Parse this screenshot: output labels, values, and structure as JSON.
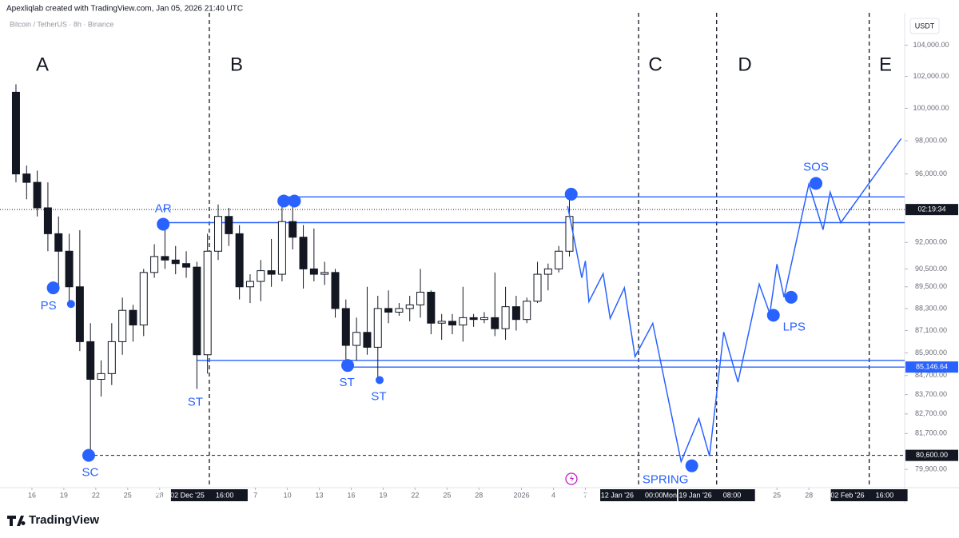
{
  "chart_data": {
    "type": "candlestick",
    "credit": "Apexliqlab created with TradingView.com, Jan 05, 2026 21:40 UTC",
    "subtitle": "Bitcoin / TetherUS · 8h · Binance",
    "currency": "USDT",
    "brand": "TradingView",
    "log_scale": true,
    "xlim": [
      "2025-11-13T00:00",
      "2026-02-06T00:00"
    ],
    "ylim": [
      79000,
      105900
    ],
    "yticks": [
      {
        "value": 104000,
        "label": "104,000.00"
      },
      {
        "value": 102000,
        "label": "102,000.00"
      },
      {
        "value": 100000,
        "label": "100,000.00"
      },
      {
        "value": 98000,
        "label": "98,000.00"
      },
      {
        "value": 96000,
        "label": "96,000.00"
      },
      {
        "value": 92000,
        "label": "92,000.00"
      },
      {
        "value": 90500,
        "label": "90,500.00"
      },
      {
        "value": 89500,
        "label": "89,500.00"
      },
      {
        "value": 88300,
        "label": "88,300.00"
      },
      {
        "value": 87100,
        "label": "87,100.00"
      },
      {
        "value": 85900,
        "label": "85,900.00"
      },
      {
        "value": 84700,
        "label": "84,700.00"
      },
      {
        "value": 83700,
        "label": "83,700.00"
      },
      {
        "value": 82700,
        "label": "82,700.00"
      },
      {
        "value": 81700,
        "label": "81,700.00"
      },
      {
        "value": 79900,
        "label": "79,900.00"
      }
    ],
    "xticks": [
      {
        "value": "2025-11-16T00:00",
        "label": "16"
      },
      {
        "value": "2025-11-19T00:00",
        "label": "19"
      },
      {
        "value": "2025-11-22T00:00",
        "label": "22"
      },
      {
        "value": "2025-11-25T00:00",
        "label": "25"
      },
      {
        "value": "2025-11-28T00:00",
        "label": "28"
      },
      {
        "value": "2025-12-02T16:00",
        "label": "Tue 02 Dec '25",
        "time": "16:00",
        "highlight": true,
        "divider": true
      },
      {
        "value": "2025-12-07T00:00",
        "label": "7"
      },
      {
        "value": "2025-12-10T00:00",
        "label": "10"
      },
      {
        "value": "2025-12-13T00:00",
        "label": "13"
      },
      {
        "value": "2025-12-16T00:00",
        "label": "16"
      },
      {
        "value": "2025-12-19T00:00",
        "label": "19"
      },
      {
        "value": "2025-12-22T00:00",
        "label": "22"
      },
      {
        "value": "2025-12-25T00:00",
        "label": "25"
      },
      {
        "value": "2025-12-28T00:00",
        "label": "28"
      },
      {
        "value": "2026-01-01T00:00",
        "label": "2026"
      },
      {
        "value": "2026-01-04T00:00",
        "label": "4"
      },
      {
        "value": "2026-01-07T00:00",
        "label": "7"
      },
      {
        "value": "2026-01-12T00:00",
        "label": "Mon 12 Jan '26",
        "time": "00:00",
        "highlight": true,
        "divider": true
      },
      {
        "value": "2026-01-19T08:00",
        "label": "Mon 19 Jan '26",
        "time": "08:00",
        "highlight": true,
        "divider": true
      },
      {
        "value": "2026-01-25T00:00",
        "label": "25"
      },
      {
        "value": "2026-01-28T00:00",
        "label": "28"
      },
      {
        "value": "2026-02-02T16:00",
        "label": "Mon 02 Feb '26",
        "time": "16:00",
        "highlight": true,
        "divider": true
      }
    ],
    "phases": [
      "A",
      "B",
      "C",
      "D",
      "E"
    ],
    "candles": {
      "up_color": "#ffffff",
      "down_color": "#131722",
      "x": [
        "2025-11-14",
        "2025-11-15",
        "2025-11-16",
        "2025-11-17",
        "2025-11-18",
        "2025-11-19",
        "2025-11-20",
        "2025-11-21",
        "2025-11-22",
        "2025-11-23",
        "2025-11-24",
        "2025-11-25",
        "2025-11-26",
        "2025-11-27",
        "2025-11-28",
        "2025-11-29",
        "2025-11-30",
        "2025-12-01",
        "2025-12-02",
        "2025-12-03",
        "2025-12-04",
        "2025-12-05",
        "2025-12-06",
        "2025-12-07",
        "2025-12-08",
        "2025-12-09",
        "2025-12-10",
        "2025-12-11",
        "2025-12-12",
        "2025-12-13",
        "2025-12-14",
        "2025-12-15",
        "2025-12-16",
        "2025-12-17",
        "2025-12-18",
        "2025-12-19",
        "2025-12-20",
        "2025-12-21",
        "2025-12-22",
        "2025-12-23",
        "2025-12-24",
        "2025-12-25",
        "2025-12-26",
        "2025-12-27",
        "2025-12-28",
        "2025-12-29",
        "2025-12-30",
        "2025-12-31",
        "2026-01-01",
        "2026-01-02",
        "2026-01-03",
        "2026-01-04",
        "2026-01-05"
      ],
      "ohlc": [
        [
          101000,
          101500,
          95500,
          96000
        ],
        [
          96000,
          96500,
          94500,
          95500
        ],
        [
          95500,
          96200,
          93500,
          94000
        ],
        [
          94000,
          95500,
          91500,
          92500
        ],
        [
          92500,
          93500,
          89500,
          91500
        ],
        [
          91500,
          92500,
          88500,
          89500
        ],
        [
          89500,
          92700,
          86000,
          86500
        ],
        [
          86500,
          87500,
          80600,
          84500
        ],
        [
          84500,
          85500,
          83600,
          84800
        ],
        [
          84800,
          87500,
          84200,
          86500
        ],
        [
          86500,
          88900,
          85800,
          88200
        ],
        [
          88200,
          88500,
          86500,
          87400
        ],
        [
          87400,
          90500,
          86800,
          90300
        ],
        [
          90300,
          91900,
          90000,
          91200
        ],
        [
          91200,
          93050,
          90500,
          91000
        ],
        [
          91000,
          91800,
          90200,
          90800
        ],
        [
          90800,
          91500,
          90000,
          90600
        ],
        [
          90600,
          90900,
          84000,
          85800
        ],
        [
          85800,
          92500,
          84800,
          91500
        ],
        [
          91500,
          94200,
          91000,
          93500
        ],
        [
          93500,
          94000,
          91800,
          92500
        ],
        [
          92500,
          93000,
          88800,
          89500
        ],
        [
          89500,
          90200,
          88600,
          89800
        ],
        [
          89800,
          91000,
          88700,
          90400
        ],
        [
          90400,
          92200,
          89500,
          90200
        ],
        [
          90200,
          94400,
          89800,
          93200
        ],
        [
          93200,
          94400,
          91600,
          92300
        ],
        [
          92300,
          93000,
          89400,
          90500
        ],
        [
          90500,
          92800,
          89800,
          90200
        ],
        [
          90200,
          90900,
          89600,
          90300
        ],
        [
          90300,
          90500,
          87800,
          88300
        ],
        [
          88300,
          88800,
          85230,
          86300
        ],
        [
          86300,
          87800,
          85500,
          87000
        ],
        [
          87000,
          89500,
          85800,
          86200
        ],
        [
          86200,
          89000,
          84460,
          88300
        ],
        [
          88300,
          89300,
          87500,
          88100
        ],
        [
          88100,
          88600,
          87900,
          88300
        ],
        [
          88300,
          89000,
          87600,
          88500
        ],
        [
          88500,
          90500,
          87800,
          89200
        ],
        [
          89200,
          89300,
          86900,
          87500
        ],
        [
          87500,
          88000,
          86600,
          87600
        ],
        [
          87600,
          88000,
          86900,
          87400
        ],
        [
          87400,
          89500,
          86500,
          87800
        ],
        [
          87800,
          88000,
          87300,
          87700
        ],
        [
          87700,
          88100,
          87500,
          87800
        ],
        [
          87800,
          90300,
          86800,
          87200
        ],
        [
          87200,
          89500,
          86600,
          88400
        ],
        [
          88400,
          89000,
          87100,
          87700
        ],
        [
          87700,
          88900,
          87500,
          88700
        ],
        [
          88700,
          90900,
          88600,
          90200
        ],
        [
          90200,
          90800,
          89300,
          90500
        ],
        [
          90500,
          91800,
          90300,
          91500
        ],
        [
          91500,
          94800,
          91200,
          93500
        ]
      ]
    },
    "price_lines": [
      {
        "value": 94640,
        "from": "2025-12-09T16:00",
        "style": "solid",
        "color": "#2962ff"
      },
      {
        "value": 93140,
        "from": "2025-11-28T08:00",
        "style": "solid",
        "color": "#2962ff"
      },
      {
        "value": 85500,
        "from": "2025-12-01T12:00",
        "style": "solid",
        "color": "#2962ff"
      },
      {
        "value": 85146.64,
        "label": "85,146.64",
        "from": "2025-12-15T16:00",
        "style": "solid",
        "color": "#2962ff"
      },
      {
        "value": 80600,
        "label": "80,600.00",
        "from": "2025-11-21T08:00",
        "style": "dashed",
        "color": "#131722"
      },
      {
        "value": 93900,
        "label": "02:19:34",
        "from": "2025-11-13T00:00",
        "style": "dotted",
        "color": "#131722"
      }
    ],
    "projection": {
      "color": "#2962ff",
      "x": [
        "2026-01-05T08:00",
        "2026-01-06T16:00",
        "2026-01-07T00:00",
        "2026-01-07T08:00",
        "2026-01-08T16:00",
        "2026-01-09T08:00",
        "2026-01-10T16:00",
        "2026-01-11T16:00",
        "2026-01-13T08:00",
        "2026-01-16T00:00",
        "2026-01-17T16:00",
        "2026-01-18T16:00",
        "2026-01-20T00:00",
        "2026-01-21T08:00",
        "2026-01-23T08:00",
        "2026-01-24T08:00",
        "2026-01-25T00:00",
        "2026-01-25T16:00",
        "2026-01-28T00:00",
        "2026-01-29T08:00",
        "2026-01-30T00:00",
        "2026-01-31T00:00",
        "2026-02-05T16:00"
      ],
      "values": [
        94100,
        90000,
        90950,
        88680,
        90230,
        87760,
        89440,
        85700,
        87490,
        80290,
        82470,
        80570,
        87020,
        84350,
        89650,
        88020,
        90770,
        88920,
        95390,
        92730,
        94920,
        93140,
        98130
      ]
    },
    "events": [
      {
        "label": "PS",
        "x": "2025-11-18T00:00",
        "value": 89440
      },
      {
        "x": "2025-11-19T16:00",
        "value": 88550
      },
      {
        "label": "SC",
        "x": "2025-11-21T08:00",
        "value": 80600
      },
      {
        "label": "AR",
        "x": "2025-11-28T08:00",
        "value": 93050
      },
      {
        "label": "ST",
        "x": "2025-12-01T12:00",
        "value": 84000,
        "dot": false
      },
      {
        "x": "2025-12-09T16:00",
        "value": 94400
      },
      {
        "x": "2025-12-10T16:00",
        "value": 94400
      },
      {
        "label": "ST",
        "x": "2025-12-15T16:00",
        "value": 85230
      },
      {
        "label": "ST",
        "x": "2025-12-18T16:00",
        "value": 84460
      },
      {
        "x": "2026-01-05T16:00",
        "value": 94800
      },
      {
        "label": "SPRING",
        "x": "2026-01-17T00:00",
        "value": 80080
      },
      {
        "label": "LPS",
        "x": "2026-01-24T16:00",
        "value": 87930
      },
      {
        "x": "2026-01-26T08:00",
        "value": 88920
      },
      {
        "label": "SOS",
        "x": "2026-01-28T16:00",
        "value": 95440
      }
    ],
    "event_color": "#2962ff"
  }
}
